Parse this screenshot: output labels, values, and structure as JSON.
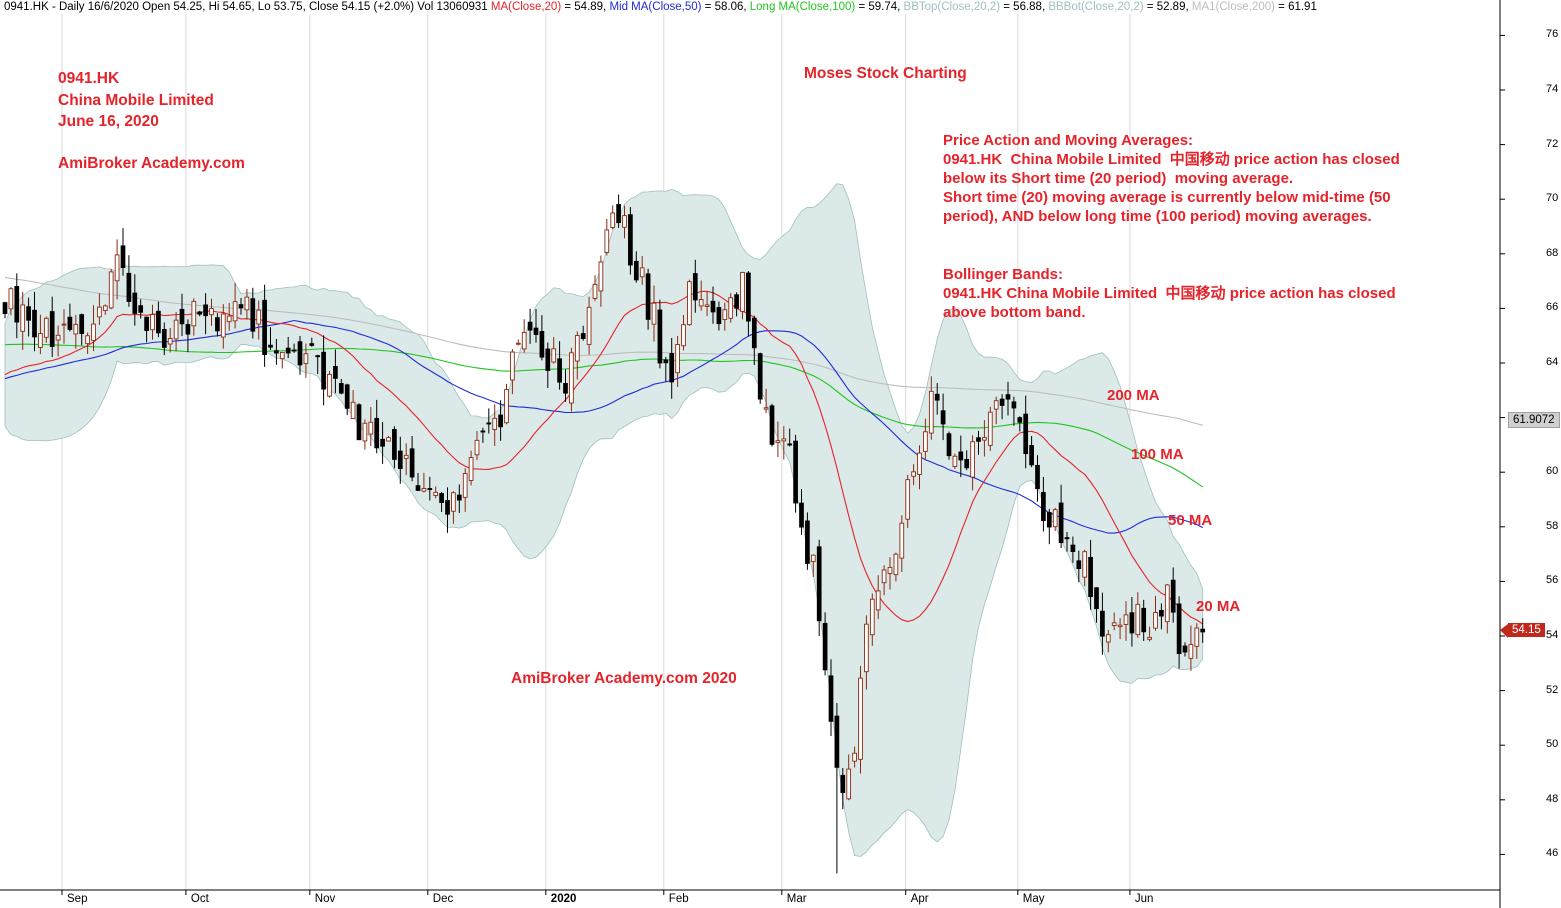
{
  "header": {
    "prefix": "0941.HK - Daily 16/6/2020 Open 54.25, Hi 54.65, Lo 53.75, Close 54.15 (+2.0%) Vol 13060931 ",
    "indicators": [
      {
        "text": "MA(Close,20)",
        "value": " = 54.89, ",
        "color": "#e5232a"
      },
      {
        "text": "Mid MA(Close,50)",
        "value": " = 58.06, ",
        "color": "#1f2bd6"
      },
      {
        "text": "Long MA(Close,100)",
        "value": " = 59.74, ",
        "color": "#22c422"
      },
      {
        "text": "BBTop(Close,20,2)",
        "value": " = 56.88, ",
        "color": "#9fbfc0"
      },
      {
        "text": "BBBot(Close,20,2)",
        "value": " = 52.89, ",
        "color": "#9fbfc0"
      },
      {
        "text": "MA1(Close,200)",
        "value": " = 61.91",
        "color": "#bdbdbd"
      }
    ]
  },
  "annotations": {
    "ticker": "0941.HK",
    "company": "China Mobile Limited",
    "date": "June 16, 2020",
    "site": "AmiBroker Academy.com",
    "watermark_top": "Moses Stock Charting",
    "watermark_bottom": "AmiBroker Academy.com  2020",
    "pa_block": "Price Action and Moving Averages:\n0941.HK  China Mobile Limited  中国移动 price action has closed\nbelow its Short time (20 period)  moving average.\nShort time (20) moving average is currently below mid-time (50\nperiod), AND below long time (100 period) moving averages.",
    "bb_block": "Bollinger Bands:\n0941.HK China Mobile Limited  中国移动 price action has closed\nabove bottom band.",
    "ma200": "200 MA",
    "ma100": "100 MA",
    "ma50": "50 MA",
    "ma20": "20 MA"
  },
  "price_boxes": {
    "ma200_value": "61.9072",
    "close_value": "54.15"
  },
  "colors": {
    "ma20": "#e5232a",
    "ma50": "#1f2bd6",
    "ma100": "#22c422",
    "ma200": "#bdbdbd",
    "band_fill": "#dce9e9",
    "band_edge": "#9fbfc0",
    "up_candle": "#8b2a10",
    "down_candle": "#000000",
    "annotation": "#e5232a"
  },
  "chart_data": {
    "type": "candlestick",
    "ticker": "0941.HK",
    "period": "Daily",
    "ylim": [
      45,
      77
    ],
    "y_ticks": [
      46,
      48,
      50,
      52,
      54,
      56,
      58,
      60,
      62,
      64,
      66,
      68,
      70,
      72,
      74,
      76
    ],
    "y_tick_labels": [
      "46",
      "48",
      "50",
      "52",
      "54",
      "56",
      "58",
      "60",
      "62",
      "64",
      "66",
      "68",
      "70",
      "72",
      "74",
      "76"
    ],
    "x_ticks": [
      {
        "label": "Sep",
        "bar": 10
      },
      {
        "label": "Oct",
        "bar": 31
      },
      {
        "label": "Nov",
        "bar": 52
      },
      {
        "label": "Dec",
        "bar": 72
      },
      {
        "label": "2020",
        "bar": 92,
        "bold": true
      },
      {
        "label": "Feb",
        "bar": 112
      },
      {
        "label": "Mar",
        "bar": 132
      },
      {
        "label": "Apr",
        "bar": 153
      },
      {
        "label": "May",
        "bar": 172
      },
      {
        "label": "Jun",
        "bar": 191
      }
    ],
    "bar_count": 204,
    "grid": "vertical at month starts",
    "last_bar": {
      "date": "16/6/2020",
      "open": 54.25,
      "high": 54.65,
      "low": 53.75,
      "close": 54.15,
      "volume": 13060931
    },
    "series_values_at_last_bar": {
      "MA(Close,20)": 54.89,
      "Mid MA(Close,50)": 58.06,
      "Long MA(Close,100)": 59.74,
      "BBTop(Close,20,2)": 56.88,
      "BBBot(Close,20,2)": 52.89,
      "MA1(Close,200)": 61.91
    },
    "anchors": [
      [
        0,
        66.5
      ],
      [
        3,
        66.0
      ],
      [
        8,
        65.0
      ],
      [
        12,
        64.8
      ],
      [
        15,
        65.5
      ],
      [
        19,
        67.4
      ],
      [
        23,
        65.8
      ],
      [
        27,
        64.8
      ],
      [
        32,
        65.6
      ],
      [
        37,
        65.4
      ],
      [
        41,
        66.3
      ],
      [
        44,
        64.9
      ],
      [
        48,
        64.2
      ],
      [
        52,
        64.3
      ],
      [
        56,
        63.0
      ],
      [
        60,
        61.5
      ],
      [
        63,
        61.3
      ],
      [
        67,
        60.3
      ],
      [
        70,
        59.8
      ],
      [
        73,
        58.7
      ],
      [
        77,
        59.5
      ],
      [
        80,
        60.5
      ],
      [
        83,
        61.5
      ],
      [
        86,
        64.0
      ],
      [
        89,
        65.7
      ],
      [
        92,
        64.0
      ],
      [
        95,
        63.5
      ],
      [
        99,
        65.5
      ],
      [
        102,
        69.2
      ],
      [
        105,
        68.8
      ],
      [
        107,
        67.6
      ],
      [
        110,
        65.5
      ],
      [
        112,
        63.5
      ],
      [
        114,
        64.0
      ],
      [
        116,
        67.2
      ],
      [
        119,
        65.8
      ],
      [
        122,
        65.5
      ],
      [
        125,
        66.7
      ],
      [
        127,
        64.2
      ],
      [
        130,
        60.8
      ],
      [
        133,
        61.5
      ],
      [
        135,
        57.5
      ],
      [
        137,
        56.5
      ],
      [
        139,
        52.5
      ],
      [
        142,
        48.5
      ],
      [
        144,
        50.0
      ],
      [
        146,
        54.5
      ],
      [
        148,
        56.0
      ],
      [
        150,
        56.3
      ],
      [
        152,
        58.0
      ],
      [
        155,
        61.2
      ],
      [
        157,
        62.5
      ],
      [
        160,
        61.0
      ],
      [
        163,
        60.5
      ],
      [
        166,
        61.5
      ],
      [
        169,
        63.0
      ],
      [
        171,
        62.5
      ],
      [
        173,
        60.5
      ],
      [
        175,
        59.0
      ],
      [
        177,
        58.5
      ],
      [
        180,
        57.0
      ],
      [
        183,
        56.8
      ],
      [
        186,
        54.0
      ],
      [
        189,
        55.0
      ],
      [
        192,
        54.5
      ],
      [
        195,
        54.2
      ],
      [
        197,
        56.0
      ],
      [
        199,
        54.0
      ],
      [
        201,
        53.3
      ],
      [
        203,
        54.15
      ]
    ]
  }
}
